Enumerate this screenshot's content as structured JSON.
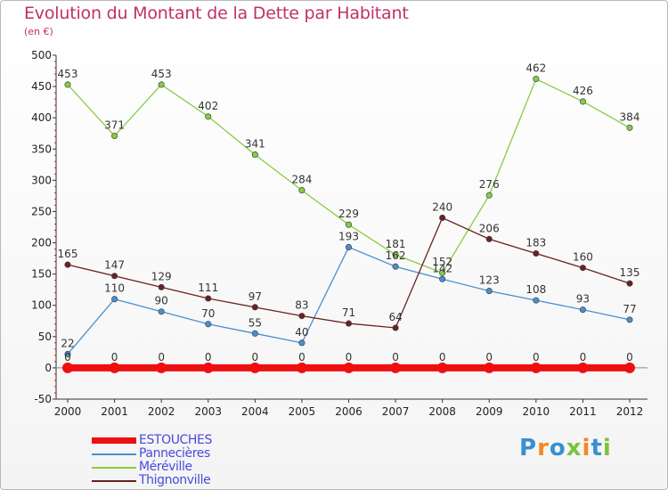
{
  "title": "Evolution du Montant de la Dette par Habitant",
  "subtitle": "(en €)",
  "logo": {
    "letters": [
      "P",
      "r",
      "o",
      "x",
      "i",
      "t",
      "i"
    ],
    "colors": [
      "#3a8fd0",
      "#f08a20",
      "#3a8fd0",
      "#7cc242",
      "#f08a20",
      "#3a8fd0",
      "#7cc242"
    ]
  },
  "chart_data": {
    "type": "line",
    "title": "Evolution du Montant de la Dette par Habitant",
    "ylabel": "(en €)",
    "ylim": [
      -50,
      500
    ],
    "yticks": [
      "-50",
      "0",
      "50",
      "100",
      "150",
      "200",
      "250",
      "300",
      "350",
      "400",
      "450",
      "500"
    ],
    "x": [
      "2000",
      "2001",
      "2002",
      "2003",
      "2004",
      "2005",
      "2006",
      "2007",
      "2008",
      "2009",
      "2010",
      "2011",
      "2012"
    ],
    "grid": false,
    "legend_position": "bottom-left",
    "series": [
      {
        "name": "ESTOUCHES",
        "color": "#ee1010",
        "values": [
          0,
          0,
          0,
          0,
          0,
          0,
          0,
          0,
          0,
          0,
          0,
          0,
          0
        ],
        "labels": [
          "0",
          "0",
          "0",
          "0",
          "0",
          "0",
          "0",
          "0",
          "0",
          "0",
          "0",
          "0",
          "0"
        ]
      },
      {
        "name": "Pannecières",
        "color": "#4a8fd0",
        "values": [
          22,
          110,
          90,
          70,
          55,
          40,
          193,
          162,
          142,
          123,
          108,
          93,
          77
        ],
        "labels": [
          "22",
          "110",
          "90",
          "70",
          "55",
          "40",
          "193",
          "162",
          "142",
          "123",
          "108",
          "93",
          "77"
        ]
      },
      {
        "name": "Méréville",
        "color": "#88cc44",
        "values": [
          453,
          371,
          453,
          402,
          341,
          284,
          229,
          181,
          152,
          276,
          462,
          426,
          384
        ],
        "labels": [
          "453",
          "371",
          "453",
          "402",
          "341",
          "284",
          "229",
          "181",
          "152",
          "276",
          "462",
          "426",
          "384"
        ]
      },
      {
        "name": "Thignonville",
        "color": "#6b2020",
        "values": [
          165,
          147,
          129,
          111,
          97,
          83,
          71,
          64,
          240,
          206,
          183,
          160,
          135
        ],
        "labels": [
          "165",
          "147",
          "129",
          "111",
          "97",
          "83",
          "71",
          "64",
          "240",
          "206",
          "183",
          "160",
          "135"
        ]
      }
    ]
  }
}
